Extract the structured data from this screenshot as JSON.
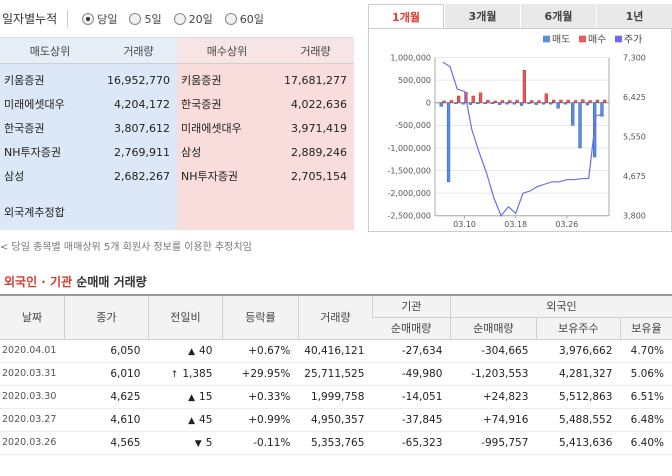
{
  "period": {
    "title": "일자별누적",
    "options": [
      {
        "label": "당일",
        "checked": true
      },
      {
        "label": "5일",
        "checked": false
      },
      {
        "label": "20일",
        "checked": false
      },
      {
        "label": "60일",
        "checked": false
      }
    ]
  },
  "broker": {
    "sell_header": "매도상위",
    "buy_header": "매수상위",
    "vol_header": "거래량",
    "sell": [
      {
        "name": "키움증권",
        "vol": "16,952,770"
      },
      {
        "name": "미래에셋대우",
        "vol": "4,204,172"
      },
      {
        "name": "한국증권",
        "vol": "3,807,612"
      },
      {
        "name": "NH투자증권",
        "vol": "2,769,911"
      },
      {
        "name": "삼성",
        "vol": "2,682,267"
      }
    ],
    "buy": [
      {
        "name": "키움증권",
        "vol": "17,681,277"
      },
      {
        "name": "한국증권",
        "vol": "4,022,636"
      },
      {
        "name": "미래에셋대우",
        "vol": "3,971,419"
      },
      {
        "name": "삼성",
        "vol": "2,889,246"
      },
      {
        "name": "NH투자증권",
        "vol": "2,705,154"
      }
    ],
    "extra": "외국계추정합",
    "note": "< 당일 종목별 매매상위 5개 회원사 정보를 이용한 추정치임"
  },
  "chart_tabs": [
    "1개월",
    "3개월",
    "6개월",
    "1년"
  ],
  "chart_data": {
    "type": "bar",
    "legend": [
      "매도",
      "매수",
      "주가"
    ],
    "legend_position": "top-right",
    "colors": {
      "sell": "#5b8ee0",
      "buy": "#e65b5b",
      "price": "#6b6bef"
    },
    "y_left": {
      "min": -2500000,
      "max": 1000000,
      "ticks": [
        "1,000,000",
        "500,000",
        "0",
        "-500,000",
        "-1,000,000",
        "-1,500,000",
        "-2,000,000",
        "-2,500,000"
      ]
    },
    "y_right": {
      "min": 3800,
      "max": 7300,
      "ticks": [
        "7,300",
        "6,425",
        "5,550",
        "4,675",
        "3,800"
      ]
    },
    "x_labels": [
      "03.10",
      "03.18",
      "03.26"
    ],
    "sell_values": [
      -80000,
      -1750000,
      -20000,
      -30000,
      -40000,
      -20000,
      -20000,
      -20000,
      -40000,
      -30000,
      -30000,
      -60000,
      -20000,
      -40000,
      -30000,
      -30000,
      -120000,
      -30000,
      -500000,
      -1000000,
      -50000,
      -1200000,
      -300000
    ],
    "buy_values": [
      40000,
      50000,
      150000,
      230000,
      150000,
      220000,
      60000,
      40000,
      50000,
      50000,
      60000,
      720000,
      50000,
      50000,
      200000,
      60000,
      60000,
      60000,
      50000,
      70000,
      50000,
      60000,
      60000
    ],
    "price_values": [
      7200,
      7100,
      6600,
      6550,
      5700,
      5200,
      4750,
      4200,
      3800,
      4000,
      3850,
      4300,
      4350,
      4450,
      4500,
      4550,
      4550,
      4600,
      4600,
      4620,
      4625,
      6010,
      6050
    ]
  },
  "section": {
    "title_red": "외국인 · 기관",
    "title_rest": " 순매매 거래량"
  },
  "table": {
    "headers": {
      "date": "날짜",
      "close": "종가",
      "diff": "전일비",
      "rate": "등락률",
      "volume": "거래량",
      "inst": "기관",
      "foreign": "외국인",
      "inst_net": "순매매량",
      "for_net": "순매매량",
      "for_hold": "보유주수",
      "for_ratio": "보유율"
    },
    "rows": [
      {
        "date": "2020.04.01",
        "close": "6,050",
        "dir": "up",
        "arrow": "▲",
        "diff": "40",
        "rate": "+0.67%",
        "volume": "40,416,121",
        "inst": "-27,634",
        "inst_dir": "down",
        "for_net": "-304,665",
        "for_dir": "down",
        "hold": "3,976,662",
        "ratio": "4.70%"
      },
      {
        "date": "2020.03.31",
        "close": "6,010",
        "dir": "up",
        "arrow": "↑",
        "diff": "1,385",
        "rate": "+29.95%",
        "volume": "25,711,525",
        "inst": "-49,980",
        "inst_dir": "down",
        "for_net": "-1,203,553",
        "for_dir": "down",
        "hold": "4,281,327",
        "ratio": "5.06%"
      },
      {
        "date": "2020.03.30",
        "close": "4,625",
        "dir": "up",
        "arrow": "▲",
        "diff": "15",
        "rate": "+0.33%",
        "volume": "1,999,758",
        "inst": "-14,051",
        "inst_dir": "down",
        "for_net": "+24,823",
        "for_dir": "up",
        "hold": "5,512,863",
        "ratio": "6.51%"
      },
      {
        "date": "2020.03.27",
        "close": "4,610",
        "dir": "up",
        "arrow": "▲",
        "diff": "45",
        "rate": "+0.99%",
        "volume": "4,950,357",
        "inst": "-37,845",
        "inst_dir": "down",
        "for_net": "+74,916",
        "for_dir": "up",
        "hold": "5,488,552",
        "ratio": "6.48%"
      },
      {
        "date": "2020.03.26",
        "close": "4,565",
        "dir": "down",
        "arrow": "▼",
        "diff": "5",
        "rate": "-0.11%",
        "volume": "5,353,765",
        "inst": "-65,323",
        "inst_dir": "down",
        "for_net": "-995,757",
        "for_dir": "down",
        "hold": "5,413,636",
        "ratio": "6.40%"
      }
    ]
  }
}
